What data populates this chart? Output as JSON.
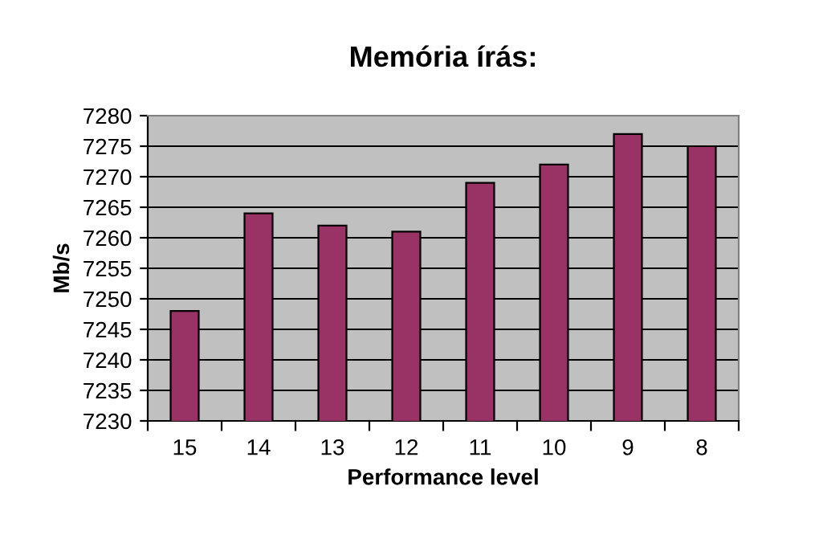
{
  "chart_data": {
    "type": "bar",
    "title": "Memória írás:",
    "xlabel": "Performance level",
    "ylabel": "Mb/s",
    "categories": [
      "15",
      "14",
      "13",
      "12",
      "11",
      "10",
      "9",
      "8"
    ],
    "values": [
      7248,
      7264,
      7262,
      7261,
      7269,
      7272,
      7277,
      7275
    ],
    "color": "#993366",
    "ylim": [
      7230,
      7280
    ],
    "yticks": [
      7230,
      7235,
      7240,
      7245,
      7250,
      7255,
      7260,
      7265,
      7270,
      7275,
      7280
    ],
    "grid": "y",
    "legend": false
  }
}
